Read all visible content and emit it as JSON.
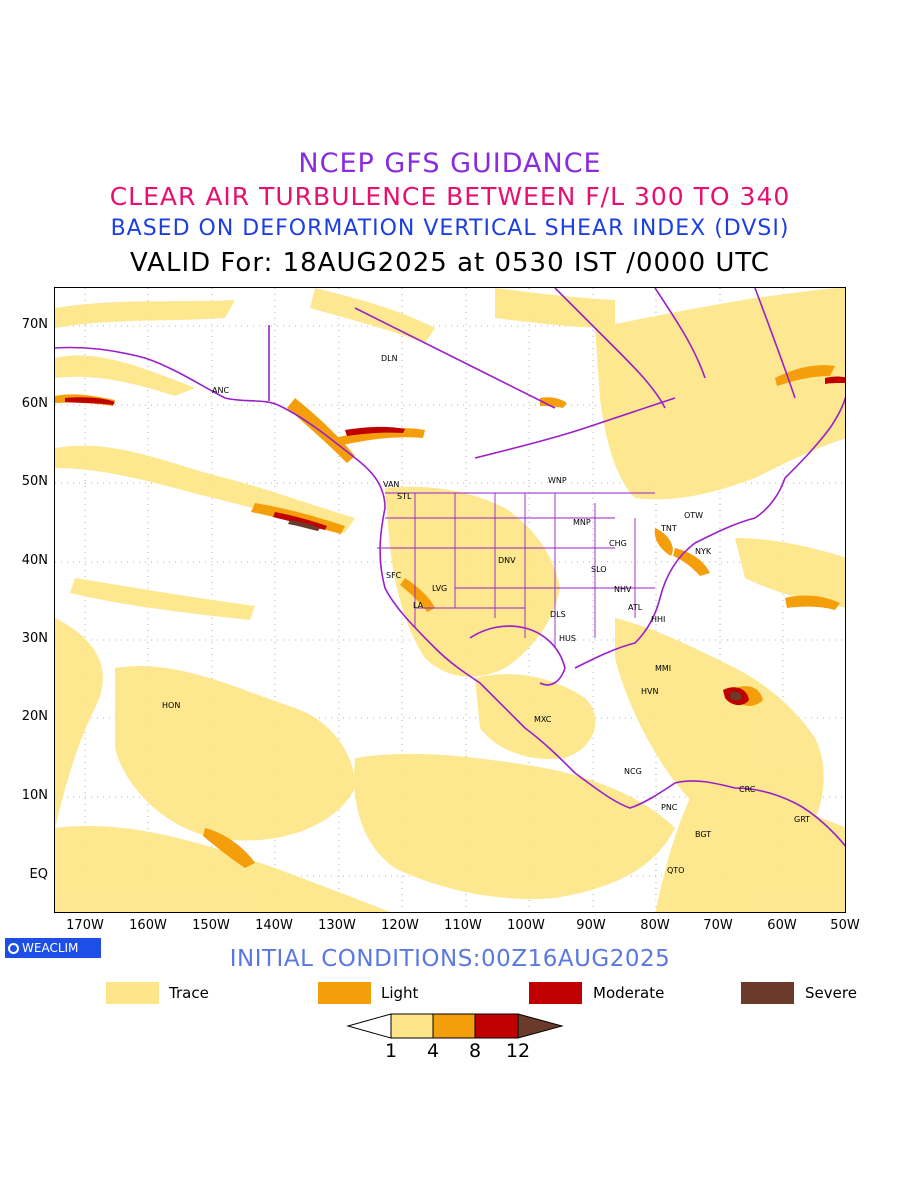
{
  "header": {
    "line1": "NCEP GFS GUIDANCE",
    "line2": "CLEAR AIR TURBULENCE BETWEEN F/L 300 TO 340",
    "line3": "BASED ON DEFORMATION VERTICAL SHEAR INDEX (DVSI)",
    "line4": "VALID For: 18AUG2025 at 0530 IST /0000 UTC"
  },
  "axes": {
    "lat_labels": [
      "70N",
      "60N",
      "50N",
      "40N",
      "30N",
      "20N",
      "10N",
      "EQ"
    ],
    "lon_labels": [
      "170W",
      "160W",
      "150W",
      "140W",
      "130W",
      "120W",
      "110W",
      "100W",
      "90W",
      "80W",
      "70W",
      "60W",
      "50W"
    ]
  },
  "cities": [
    "ANC",
    "DLN",
    "VAN",
    "STL",
    "WNP",
    "MNP",
    "OTW",
    "TNT",
    "CHG",
    "NYK",
    "DNV",
    "SLO",
    "SFC",
    "LVG",
    "LA",
    "NHV",
    "ATL",
    "HHI",
    "DLS",
    "HUS",
    "MMI",
    "HON",
    "HVN",
    "MXC",
    "NCG",
    "CRC",
    "PNC",
    "GRT",
    "BGT",
    "QTO"
  ],
  "branding": {
    "label": "WEACLIM"
  },
  "footer": {
    "initial_conditions": "INITIAL CONDITIONS:00Z16AUG2025"
  },
  "legend": [
    {
      "label": "Trace",
      "color": "#fde68a"
    },
    {
      "label": "Light",
      "color": "#f59e0b"
    },
    {
      "label": "Moderate",
      "color": "#c00000"
    },
    {
      "label": "Severe",
      "color": "#6b3a2a"
    }
  ],
  "colorbar": {
    "levels": [
      "1",
      "4",
      "8",
      "12"
    ]
  },
  "colors": {
    "coastline": "#9b1fc9",
    "trace": "#fde68a",
    "light": "#f59e0b",
    "moderate": "#c00000",
    "severe": "#6b3a2a"
  }
}
